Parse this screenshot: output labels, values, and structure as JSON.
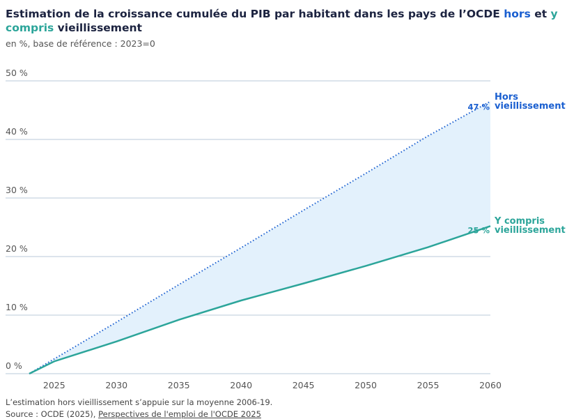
{
  "title": {
    "part1": "Estimation de la croissance cumulée du PIB par habitant dans les pays de l’OCDE ",
    "hors": "hors",
    "et": " et ",
    "ycompris": "y compris",
    "part2": " vieillissement"
  },
  "subtitle": "en %, base de référence : 2023=0",
  "footnote": "L’estimation hors vieillissement s’appuie sur la moyenne 2006-19.",
  "source_prefix": "Source : OCDE (2025), ",
  "source_link": "Perspectives de l'emploi de l'OCDE 2025",
  "chart_data": {
    "type": "line",
    "xlim": [
      2023,
      2060
    ],
    "ylim": [
      0,
      50
    ],
    "x_ticks": [
      2025,
      2030,
      2035,
      2040,
      2045,
      2050,
      2055,
      2060
    ],
    "y_ticks": [
      0,
      10,
      20,
      30,
      40,
      50
    ],
    "y_tick_labels": [
      "0 %",
      "10 %",
      "20 %",
      "30 %",
      "40 %",
      "50 %"
    ],
    "grid": true,
    "shaded_area_between_series": true,
    "series": [
      {
        "name": "Hors vieillissement",
        "name_lines": [
          "Hors",
          "vieillissement"
        ],
        "color": "#1a5fd0",
        "style": "dotted",
        "end_label": "47 %",
        "x": [
          2023,
          2030,
          2035,
          2040,
          2045,
          2050,
          2055,
          2060
        ],
        "y": [
          0,
          8.8,
          15.2,
          21.5,
          27.9,
          34.2,
          40.6,
          46.5
        ]
      },
      {
        "name": "Y compris vieillissement",
        "name_lines": [
          "Y compris",
          "vieillissement"
        ],
        "color": "#2ca59a",
        "style": "solid",
        "end_label": "25 %",
        "x": [
          2023,
          2025,
          2030,
          2035,
          2040,
          2045,
          2050,
          2055,
          2060
        ],
        "y": [
          0,
          2.1,
          5.5,
          9.2,
          12.5,
          15.4,
          18.4,
          21.6,
          25.2
        ]
      }
    ]
  }
}
